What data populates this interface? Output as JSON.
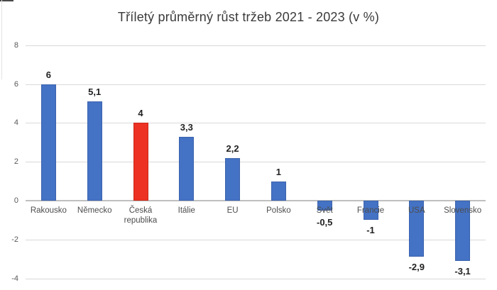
{
  "chart_data": {
    "type": "bar",
    "title": "Tříletý průměrný růst tržeb 2021 - 2023 (v %)",
    "categories": [
      "Rakousko",
      "Německo",
      "Česká republika",
      "Itálie",
      "EU",
      "Polsko",
      "Svět",
      "Francie",
      "USA",
      "Slovensko"
    ],
    "values": [
      6,
      5.1,
      4,
      3.3,
      2.2,
      1,
      -0.5,
      -1,
      -2.9,
      -3.1
    ],
    "value_labels": [
      "6",
      "5,1",
      "4",
      "3,3",
      "2,2",
      "1",
      "-0,5",
      "-1",
      "-2,9",
      "-3,1"
    ],
    "highlight_index": 2,
    "xlabel": "",
    "ylabel": "",
    "ylim": [
      -4,
      8
    ],
    "ytick_step": 2,
    "ytick_labels": [
      "8",
      "6",
      "4",
      "2",
      "0",
      "-2",
      "-4"
    ],
    "grid": true,
    "legend_position": "none",
    "decimal_separator": ","
  },
  "colors": {
    "bar_fill": "#4472c4",
    "bar_border": "#3b63ad",
    "highlight_fill": "#ed3223",
    "highlight_border": "#c9291b",
    "gridline": "#d9d9d9",
    "zero_line": "#bfbfbf",
    "tick_text": "#595959",
    "category_text": "#4d4d4d",
    "value_text": "#212121",
    "title_text": "#3a3a3a"
  }
}
